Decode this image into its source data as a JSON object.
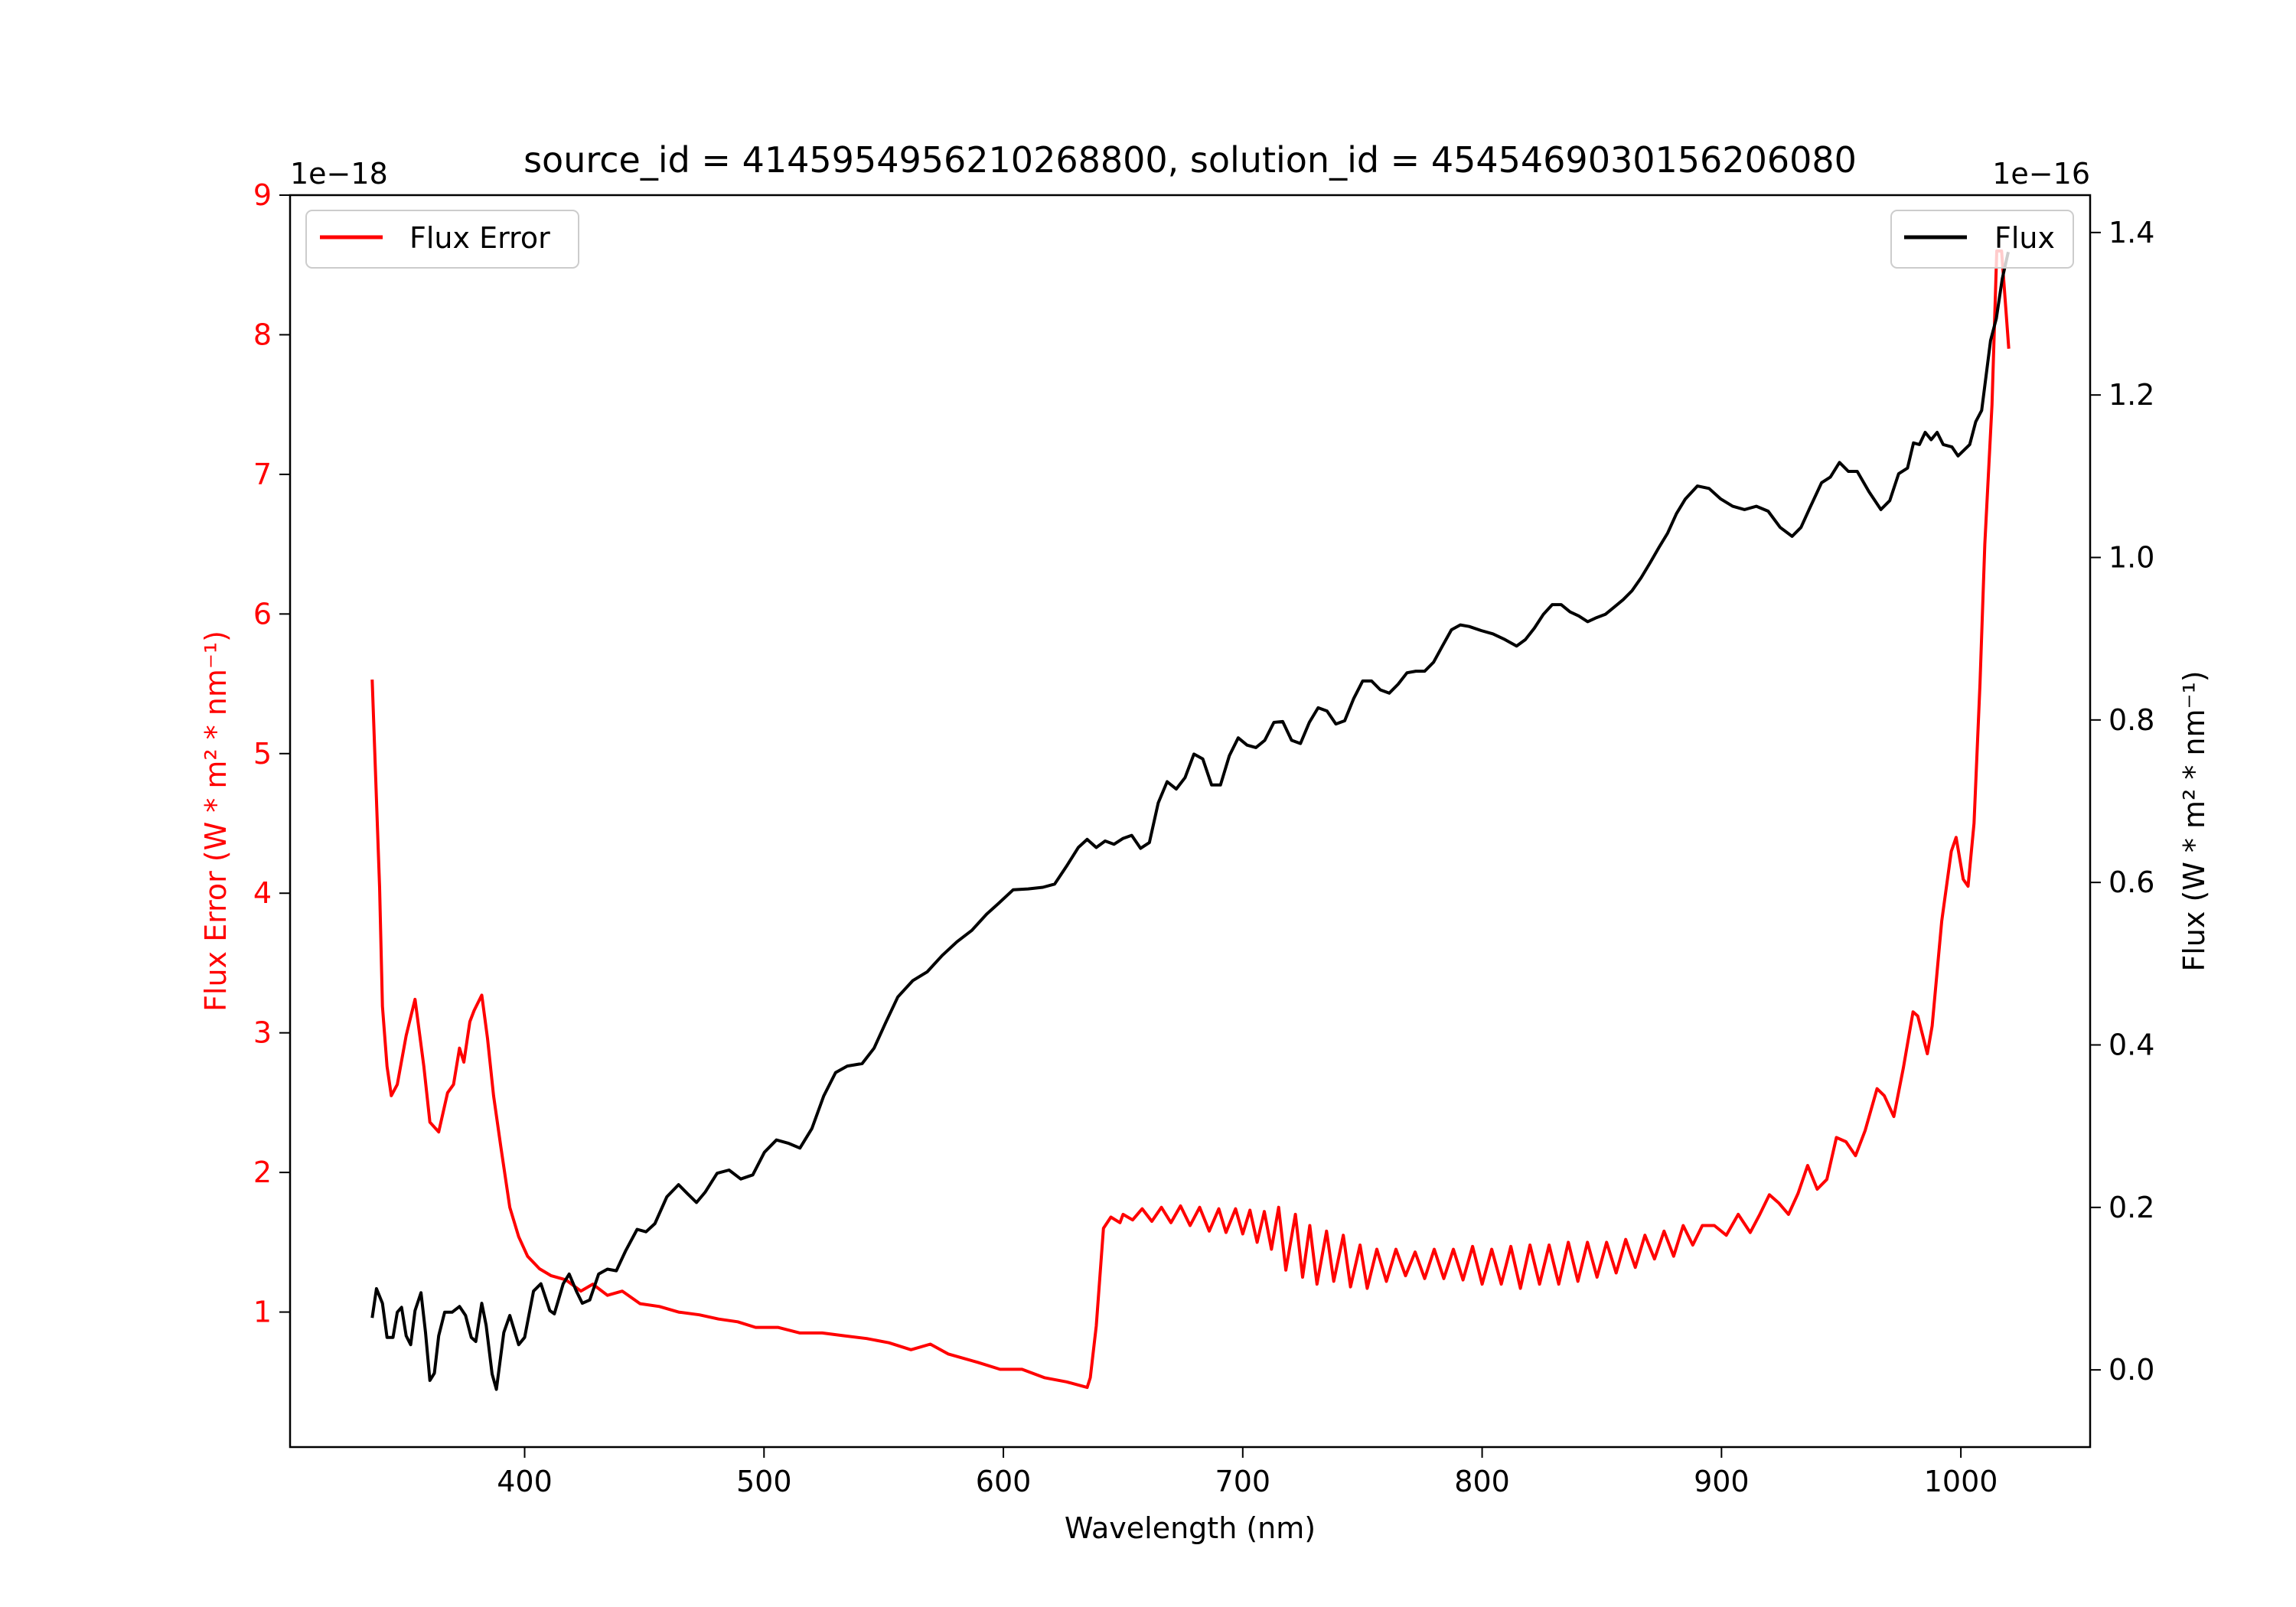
{
  "chart_data": {
    "type": "line",
    "title": "source_id = 4145954956210268800, solution_id = 4545469030156206080",
    "xlabel": "Wavelength (nm)",
    "xlim": [
      302,
      1054
    ],
    "xticks": [
      400,
      500,
      600,
      700,
      800,
      900,
      1000
    ],
    "axes": {
      "left": {
        "label": "Flux Error (W * m² * nm⁻¹)",
        "multiplier": "1e−18",
        "ylim": [
          0.033,
          9.0
        ],
        "ticks": [
          1,
          2,
          3,
          4,
          5,
          6,
          7,
          8,
          9
        ],
        "color": "#ff0000"
      },
      "right": {
        "label": "Flux (W * m² * nm⁻¹)",
        "multiplier": "1e−16",
        "ylim": [
          -0.095,
          1.446
        ],
        "ticks": [
          "0.0",
          "0.2",
          "0.4",
          "0.6",
          "0.8",
          "1.0",
          "1.2",
          "1.4"
        ],
        "color": "#000000"
      }
    },
    "legend": [
      {
        "name": "Flux Error",
        "placement": "upper-left",
        "color": "#ff0000"
      },
      {
        "name": "Flux",
        "placement": "upper-right",
        "color": "#000000"
      }
    ],
    "series": [
      {
        "name": "Flux Error",
        "axis": "left",
        "color": "#ff0000",
        "x": [
          336.3,
          339.4,
          340.6,
          342.5,
          344.3,
          346.8,
          350.5,
          354.2,
          357.9,
          360.4,
          364.1,
          367.8,
          370.3,
          372.8,
          374.6,
          377.1,
          378.9,
          382.1,
          384.5,
          387,
          390.1,
          393.8,
          397.5,
          401.2,
          406.2,
          411.1,
          417.3,
          423.5,
          428.5,
          434.6,
          440.8,
          448.2,
          456.3,
          464.3,
          473,
          481,
          489,
          496.5,
          505.8,
          515,
          524.3,
          533.6,
          542.9,
          552.2,
          561.4,
          569.5,
          576.9,
          589.3,
          598.6,
          607.8,
          617.1,
          626.4,
          635,
          636.3,
          638.8,
          641.8,
          644.9,
          648.7,
          650,
          654,
          658,
          662,
          666,
          670,
          674,
          678,
          682,
          686,
          690,
          693,
          697,
          700,
          703,
          706,
          709,
          712,
          715,
          718,
          722,
          725,
          728,
          731,
          735,
          738,
          742,
          745,
          749,
          752,
          756,
          760,
          764,
          768,
          772,
          776,
          780,
          784,
          788,
          792,
          796,
          800,
          804,
          808,
          812,
          816,
          820,
          824,
          828,
          832,
          836,
          840,
          844,
          848,
          852,
          856,
          860,
          864,
          868,
          872,
          876,
          880,
          884,
          888,
          892,
          897,
          902,
          907,
          912,
          916,
          920,
          924,
          928,
          932,
          936,
          940,
          944,
          948,
          952,
          956,
          960,
          965,
          968,
          972,
          976,
          980,
          982,
          986,
          988,
          992,
          996,
          998,
          1001,
          1003,
          1005.5,
          1008,
          1010,
          1013,
          1015,
          1017,
          1020
        ],
        "y": [
          5.53,
          4.04,
          3.19,
          2.76,
          2.55,
          2.63,
          2.98,
          3.24,
          2.76,
          2.36,
          2.29,
          2.57,
          2.63,
          2.89,
          2.79,
          3.08,
          3.16,
          3.27,
          2.96,
          2.55,
          2.18,
          1.75,
          1.54,
          1.4,
          1.31,
          1.26,
          1.23,
          1.15,
          1.2,
          1.12,
          1.15,
          1.06,
          1.04,
          1.0,
          0.98,
          0.95,
          0.93,
          0.89,
          0.89,
          0.85,
          0.85,
          0.83,
          0.81,
          0.78,
          0.73,
          0.77,
          0.7,
          0.64,
          0.59,
          0.59,
          0.53,
          0.5,
          0.46,
          0.53,
          0.9,
          1.6,
          1.68,
          1.64,
          1.7,
          1.66,
          1.74,
          1.65,
          1.75,
          1.64,
          1.76,
          1.62,
          1.75,
          1.58,
          1.74,
          1.57,
          1.74,
          1.56,
          1.73,
          1.5,
          1.72,
          1.45,
          1.75,
          1.3,
          1.7,
          1.25,
          1.62,
          1.2,
          1.58,
          1.22,
          1.55,
          1.18,
          1.48,
          1.17,
          1.45,
          1.22,
          1.45,
          1.26,
          1.43,
          1.24,
          1.45,
          1.24,
          1.45,
          1.23,
          1.47,
          1.2,
          1.45,
          1.2,
          1.47,
          1.17,
          1.48,
          1.2,
          1.48,
          1.2,
          1.5,
          1.22,
          1.5,
          1.25,
          1.5,
          1.28,
          1.52,
          1.32,
          1.55,
          1.38,
          1.58,
          1.4,
          1.62,
          1.48,
          1.62,
          1.62,
          1.55,
          1.7,
          1.57,
          1.7,
          1.84,
          1.78,
          1.7,
          1.85,
          2.05,
          1.88,
          1.95,
          2.25,
          2.22,
          2.12,
          2.3,
          2.6,
          2.55,
          2.4,
          2.75,
          3.15,
          3.12,
          2.85,
          3.05,
          3.8,
          4.3,
          4.4,
          4.1,
          4.05,
          4.5,
          5.5,
          6.5,
          7.5,
          8.6,
          8.6,
          7.9
        ]
      },
      {
        "name": "Flux",
        "axis": "right",
        "color": "#000000",
        "x": [
          336.3,
          338.1,
          340.6,
          342.5,
          345,
          346.8,
          348.6,
          350.5,
          352.4,
          354.2,
          356.7,
          358.6,
          360.4,
          362.3,
          364.1,
          366.6,
          369.7,
          372.8,
          375.3,
          377.7,
          379.6,
          382.1,
          383.9,
          386.4,
          388.2,
          391.3,
          393.8,
          397.5,
          400,
          403.7,
          406.8,
          410.5,
          412.4,
          416.1,
          418.6,
          421.6,
          424.1,
          427.2,
          430.9,
          434.6,
          438.3,
          442.1,
          447,
          450.7,
          454.4,
          459.4,
          464.3,
          468,
          471.8,
          475.5,
          480.4,
          485.4,
          490.3,
          495.3,
          500.2,
          505.2,
          510.1,
          515,
          520,
          524.9,
          529.9,
          534.8,
          541,
          546,
          550.9,
          555.9,
          562.1,
          568.2,
          574.4,
          580.6,
          586.8,
          593,
          597.9,
          604.1,
          610.3,
          616.5,
          621.4,
          626.4,
          631.3,
          635,
          638.8,
          642.5,
          646.2,
          649.9,
          653.6,
          657.3,
          661,
          664.7,
          668.4,
          672.2,
          675.9,
          679.6,
          683.3,
          687,
          690.7,
          694.4,
          698.1,
          701.8,
          705.5,
          709.2,
          713,
          716.7,
          720.4,
          724.1,
          727.8,
          731.5,
          735.2,
          738.9,
          742.6,
          746.3,
          750.1,
          753.8,
          757.5,
          761.2,
          764.9,
          768.6,
          772.3,
          776,
          779.7,
          783.4,
          787.2,
          790.9,
          794.6,
          799.6,
          804.5,
          809.5,
          814.4,
          818.1,
          821.8,
          825.6,
          829.3,
          833,
          836.7,
          840.4,
          844.1,
          847.8,
          851.5,
          855.2,
          858.9,
          862.6,
          866.4,
          870.1,
          873.8,
          877.5,
          881.2,
          884.9,
          889.9,
          894.8,
          899.7,
          904.7,
          909.6,
          914.6,
          919.5,
          924.5,
          929.5,
          933.2,
          936.9,
          941.8,
          945.5,
          949.3,
          953,
          956.7,
          961.6,
          966.6,
          970.3,
          974,
          977.7,
          980.2,
          982.7,
          985.1,
          987.6,
          990.1,
          992.6,
          996.3,
          998.8,
          1003.7,
          1006.2,
          1008.7,
          1012.4,
          1014.8,
          1017.3,
          1019.8
        ],
        "y": [
          0.064,
          0.1,
          0.082,
          0.04,
          0.04,
          0.071,
          0.077,
          0.042,
          0.031,
          0.073,
          0.095,
          0.046,
          -0.013,
          -0.004,
          0.042,
          0.071,
          0.071,
          0.078,
          0.067,
          0.04,
          0.035,
          0.082,
          0.055,
          -0.005,
          -0.024,
          0.046,
          0.067,
          0.031,
          0.04,
          0.097,
          0.106,
          0.073,
          0.069,
          0.106,
          0.118,
          0.097,
          0.082,
          0.086,
          0.118,
          0.124,
          0.122,
          0.146,
          0.173,
          0.17,
          0.18,
          0.213,
          0.228,
          0.217,
          0.206,
          0.219,
          0.242,
          0.246,
          0.235,
          0.24,
          0.268,
          0.283,
          0.279,
          0.273,
          0.297,
          0.337,
          0.366,
          0.374,
          0.377,
          0.396,
          0.428,
          0.459,
          0.479,
          0.49,
          0.51,
          0.527,
          0.541,
          0.561,
          0.574,
          0.591,
          0.592,
          0.594,
          0.598,
          0.62,
          0.643,
          0.653,
          0.643,
          0.651,
          0.647,
          0.654,
          0.658,
          0.642,
          0.649,
          0.698,
          0.724,
          0.715,
          0.729,
          0.758,
          0.752,
          0.72,
          0.72,
          0.756,
          0.778,
          0.769,
          0.766,
          0.775,
          0.797,
          0.798,
          0.775,
          0.771,
          0.797,
          0.815,
          0.811,
          0.795,
          0.799,
          0.826,
          0.848,
          0.848,
          0.837,
          0.833,
          0.844,
          0.858,
          0.86,
          0.86,
          0.871,
          0.891,
          0.911,
          0.917,
          0.915,
          0.91,
          0.906,
          0.899,
          0.891,
          0.899,
          0.913,
          0.93,
          0.942,
          0.942,
          0.933,
          0.928,
          0.921,
          0.926,
          0.93,
          0.939,
          0.948,
          0.959,
          0.975,
          0.993,
          1.012,
          1.03,
          1.054,
          1.072,
          1.088,
          1.085,
          1.072,
          1.063,
          1.059,
          1.063,
          1.057,
          1.037,
          1.026,
          1.037,
          1.061,
          1.092,
          1.099,
          1.117,
          1.106,
          1.106,
          1.081,
          1.059,
          1.07,
          1.103,
          1.11,
          1.141,
          1.139,
          1.154,
          1.145,
          1.154,
          1.139,
          1.136,
          1.125,
          1.139,
          1.167,
          1.181,
          1.267,
          1.294,
          1.343,
          1.376
        ]
      }
    ]
  }
}
